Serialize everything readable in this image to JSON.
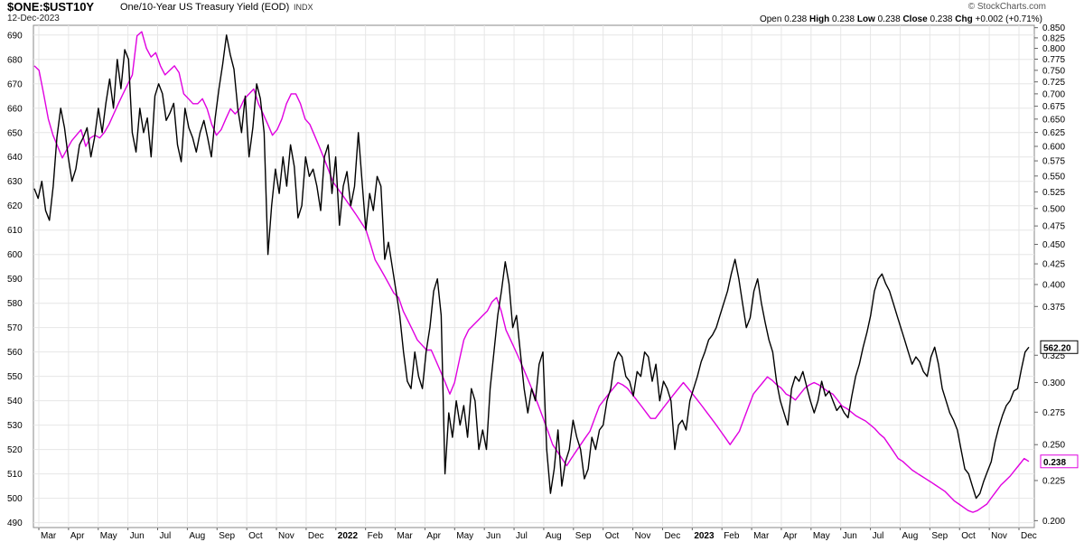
{
  "header": {
    "symbol": "$ONE:$UST10Y",
    "description": "One/10-Year US Treasury Yield (EOD)",
    "exchange": "INDX",
    "date": "12-Dec-2023",
    "credit": "© StockCharts.com",
    "open_label": "Open",
    "open_value": "0.238",
    "high_label": "High",
    "high_value": "0.238",
    "low_label": "Low",
    "low_value": "0.238",
    "close_label": "Close",
    "close_value": "0.238",
    "chg_label": "Chg",
    "chg_value": "+0.002 (+0.71%)"
  },
  "colors": {
    "ratio_line": "#000000",
    "ust10y_line": "#e000e0",
    "grid": "#e6e6e6"
  },
  "chart_data": {
    "type": "line",
    "title": "$ONE:$UST10Y One/10-Year US Treasury Yield (EOD)",
    "x_ticks": [
      "Mar",
      "Apr",
      "May",
      "Jun",
      "Jul",
      "Aug",
      "Sep",
      "Oct",
      "Nov",
      "Dec",
      "2022",
      "Feb",
      "Mar",
      "Apr",
      "May",
      "Jun",
      "Jul",
      "Aug",
      "Sep",
      "Oct",
      "Nov",
      "Dec",
      "2023",
      "Feb",
      "Mar",
      "Apr",
      "May",
      "Jun",
      "Jul",
      "Aug",
      "Sep",
      "Oct",
      "Nov",
      "Dec"
    ],
    "y_left": {
      "ticks": [
        490,
        500,
        510,
        520,
        530,
        540,
        550,
        560,
        570,
        580,
        590,
        600,
        610,
        620,
        630,
        640,
        650,
        660,
        670,
        680,
        690
      ],
      "range": [
        488,
        694
      ]
    },
    "y_right": {
      "ticks": [
        "0.200",
        "0.225",
        "0.250",
        "0.275",
        "0.300",
        "0.325",
        "0.375",
        "0.400",
        "0.425",
        "0.450",
        "0.475",
        "0.500",
        "0.525",
        "0.550",
        "0.575",
        "0.600",
        "0.625",
        "0.650",
        "0.675",
        "0.700",
        "0.725",
        "0.750",
        "0.775",
        "0.800",
        "0.825",
        "0.850"
      ],
      "scale": "log",
      "range": [
        0.196,
        0.856
      ]
    },
    "last_labels": {
      "left": "562.20",
      "right": "0.238"
    },
    "series": [
      {
        "axis": "left",
        "color": "#000000",
        "values": [
          627,
          623,
          630,
          618,
          614,
          628,
          648,
          660,
          652,
          640,
          630,
          635,
          645,
          648,
          652,
          640,
          648,
          660,
          650,
          662,
          672,
          660,
          680,
          668,
          684,
          680,
          650,
          642,
          660,
          650,
          656,
          640,
          665,
          670,
          666,
          655,
          658,
          662,
          645,
          638,
          660,
          652,
          648,
          642,
          650,
          655,
          648,
          640,
          656,
          668,
          678,
          690,
          682,
          676,
          660,
          650,
          665,
          640,
          652,
          670,
          664,
          650,
          600,
          620,
          635,
          625,
          640,
          628,
          645,
          636,
          615,
          620,
          640,
          632,
          635,
          628,
          618,
          640,
          645,
          625,
          640,
          612,
          628,
          634,
          620,
          628,
          650,
          630,
          610,
          625,
          618,
          632,
          628,
          598,
          605,
          595,
          585,
          575,
          560,
          548,
          545,
          560,
          550,
          545,
          560,
          570,
          585,
          590,
          575,
          510,
          535,
          525,
          540,
          530,
          538,
          525,
          545,
          540,
          520,
          528,
          520,
          545,
          560,
          575,
          585,
          597,
          588,
          570,
          575,
          560,
          545,
          535,
          545,
          540,
          555,
          560,
          520,
          502,
          512,
          528,
          505,
          515,
          520,
          532,
          525,
          520,
          508,
          512,
          525,
          520,
          528,
          530,
          540,
          545,
          556,
          560,
          558,
          550,
          548,
          542,
          552,
          550,
          560,
          558,
          548,
          555,
          540,
          548,
          545,
          540,
          520,
          530,
          532,
          528,
          540,
          545,
          550,
          556,
          560,
          565,
          567,
          570,
          575,
          580,
          585,
          592,
          598,
          590,
          580,
          570,
          574,
          585,
          590,
          580,
          572,
          565,
          560,
          548,
          540,
          535,
          530,
          545,
          550,
          548,
          552,
          546,
          540,
          535,
          540,
          548,
          542,
          544,
          540,
          536,
          538,
          535,
          533,
          542,
          550,
          555,
          562,
          568,
          575,
          585,
          590,
          592,
          588,
          585,
          580,
          575,
          570,
          565,
          560,
          555,
          558,
          556,
          552,
          550,
          558,
          562,
          555,
          545,
          540,
          535,
          532,
          528,
          520,
          512,
          510,
          505,
          500,
          502,
          507,
          511,
          515,
          523,
          529,
          534,
          538,
          540,
          544,
          545,
          553,
          560,
          562
        ]
      },
      {
        "axis": "right",
        "color": "#e000e0",
        "values": [
          0.76,
          0.75,
          0.7,
          0.65,
          0.62,
          0.6,
          0.58,
          0.595,
          0.61,
          0.62,
          0.63,
          0.6,
          0.615,
          0.62,
          0.615,
          0.625,
          0.64,
          0.66,
          0.68,
          0.7,
          0.72,
          0.74,
          0.83,
          0.84,
          0.8,
          0.78,
          0.79,
          0.76,
          0.74,
          0.75,
          0.76,
          0.745,
          0.7,
          0.69,
          0.68,
          0.68,
          0.69,
          0.67,
          0.64,
          0.62,
          0.63,
          0.65,
          0.67,
          0.66,
          0.67,
          0.69,
          0.7,
          0.71,
          0.68,
          0.66,
          0.64,
          0.62,
          0.63,
          0.65,
          0.68,
          0.7,
          0.7,
          0.68,
          0.65,
          0.64,
          0.62,
          0.6,
          0.58,
          0.56,
          0.54,
          0.53,
          0.52,
          0.51,
          0.5,
          0.49,
          0.48,
          0.47,
          0.45,
          0.43,
          0.42,
          0.41,
          0.4,
          0.39,
          0.385,
          0.37,
          0.36,
          0.35,
          0.34,
          0.335,
          0.33,
          0.33,
          0.32,
          0.31,
          0.3,
          0.29,
          0.3,
          0.32,
          0.34,
          0.35,
          0.355,
          0.36,
          0.365,
          0.37,
          0.38,
          0.385,
          0.37,
          0.35,
          0.34,
          0.33,
          0.32,
          0.31,
          0.3,
          0.29,
          0.28,
          0.27,
          0.26,
          0.25,
          0.245,
          0.24,
          0.235,
          0.24,
          0.245,
          0.25,
          0.255,
          0.26,
          0.27,
          0.28,
          0.285,
          0.29,
          0.295,
          0.3,
          0.298,
          0.295,
          0.29,
          0.285,
          0.28,
          0.275,
          0.27,
          0.27,
          0.275,
          0.28,
          0.285,
          0.29,
          0.295,
          0.3,
          0.295,
          0.29,
          0.285,
          0.28,
          0.275,
          0.27,
          0.265,
          0.26,
          0.255,
          0.25,
          0.255,
          0.26,
          0.27,
          0.28,
          0.29,
          0.295,
          0.3,
          0.305,
          0.302,
          0.298,
          0.295,
          0.29,
          0.288,
          0.285,
          0.29,
          0.295,
          0.298,
          0.3,
          0.298,
          0.295,
          0.292,
          0.29,
          0.285,
          0.28,
          0.278,
          0.275,
          0.272,
          0.27,
          0.268,
          0.265,
          0.262,
          0.258,
          0.255,
          0.25,
          0.245,
          0.24,
          0.238,
          0.235,
          0.232,
          0.23,
          0.228,
          0.226,
          0.224,
          0.222,
          0.22,
          0.218,
          0.215,
          0.212,
          0.21,
          0.208,
          0.206,
          0.205,
          0.206,
          0.208,
          0.21,
          0.214,
          0.218,
          0.222,
          0.225,
          0.228,
          0.232,
          0.236,
          0.24,
          0.238
        ]
      }
    ]
  }
}
